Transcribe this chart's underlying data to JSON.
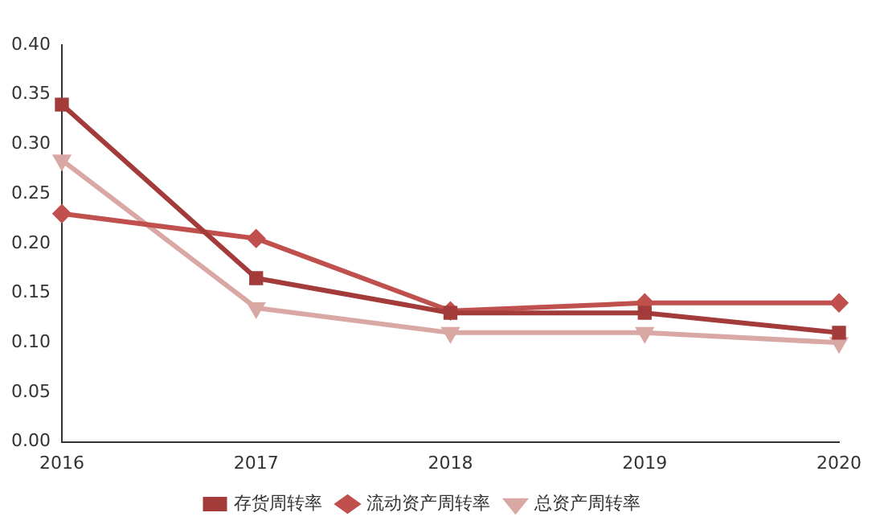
{
  "chart_data": {
    "type": "line",
    "categories": [
      "2016",
      "2017",
      "2018",
      "2019",
      "2020"
    ],
    "series": [
      {
        "name": "存货周转率",
        "color": "#a33b3b",
        "marker": "square",
        "values": [
          0.34,
          0.165,
          0.13,
          0.13,
          0.11
        ]
      },
      {
        "name": "流动资产周转率",
        "color": "#c0504d",
        "marker": "diamond",
        "values": [
          0.23,
          0.205,
          0.132,
          0.14,
          0.14
        ]
      },
      {
        "name": "总资产周转率",
        "color": "#d9a8a5",
        "marker": "triangle",
        "values": [
          0.284,
          0.135,
          0.11,
          0.11,
          0.1
        ]
      }
    ],
    "ylim": [
      0,
      0.4
    ],
    "yticks": [
      {
        "value": 0,
        "label": "0.00"
      },
      {
        "value": 0.05,
        "label": "0.05"
      },
      {
        "value": 0.1,
        "label": "0.10"
      },
      {
        "value": 0.15,
        "label": "0.15"
      },
      {
        "value": 0.2,
        "label": "0.20"
      },
      {
        "value": 0.25,
        "label": "0.25"
      },
      {
        "value": 0.3,
        "label": "0.30"
      },
      {
        "value": 0.35,
        "label": "0.35"
      },
      {
        "value": 0.4,
        "label": "0.40"
      }
    ],
    "grid": false,
    "legend": "bottom",
    "line_style": "solid"
  }
}
